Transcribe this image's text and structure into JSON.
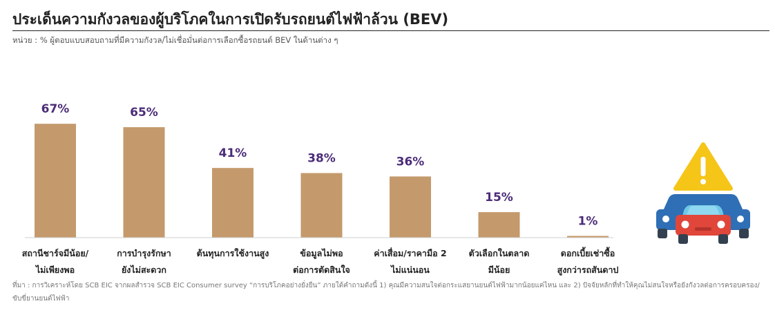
{
  "header": {
    "title": "ประเด็นความกังวลของผู้บริโภคในการเปิดรับรถยนต์ไฟฟ้าล้วน (BEV)",
    "subtitle": "หน่วย : % ผู้ตอบแบบสอบถามที่มีความกังวล/ไม่เชื่อมั่นต่อการเลือกซื้อรถยนต์ BEV ในด้านต่าง ๆ"
  },
  "chart_data": {
    "type": "bar",
    "categories": [
      [
        "สถานีชาร์จมีน้อย/",
        "ไม่เพียงพอ"
      ],
      [
        "การบำรุงรักษา",
        "ยังไม่สะดวก"
      ],
      [
        "ต้นทุนการใช้งานสูง"
      ],
      [
        "ข้อมูลไม่พอ",
        "ต่อการตัดสินใจ"
      ],
      [
        "ค่าเสื่อม/ราคามือ 2",
        "ไม่แน่นอน"
      ],
      [
        "ตัวเลือกในตลาด",
        "มีน้อย"
      ],
      [
        "ดอกเบี้ยเช่าซื้อ",
        "สูงกว่ารถสันดาป"
      ]
    ],
    "values": [
      67,
      65,
      41,
      38,
      36,
      15,
      1
    ],
    "value_labels": [
      "67%",
      "65%",
      "41%",
      "38%",
      "36%",
      "15%",
      "1%"
    ],
    "ylim": [
      0,
      100
    ],
    "bar_color": "#c49a6c",
    "label_color": "#4b2c78",
    "grid": false,
    "legend": "none"
  },
  "illustration": {
    "icon": "warning-cars-icon",
    "warning_color": "#f5c518",
    "car_front_color": "#e0463a",
    "car_back_color": "#2f6fb5"
  },
  "footer": {
    "source": "ที่มา : การวิเคราะห์โดย SCB EIC จากผลสำรวจ SCB EIC Consumer survey “การบริโภคอย่างยั่งยืน” ภายใต้คำถามดังนี้ 1) คุณมีความสนใจต่อกระแสยานยนต์ไฟฟ้ามากน้อยแค่ไหน และ 2) ปัจจัยหลักที่ทำให้คุณไม่สนใจหรือยังกังวลต่อการครอบครอง/ขับขี่ยานยนต์ไฟฟ้า"
  }
}
